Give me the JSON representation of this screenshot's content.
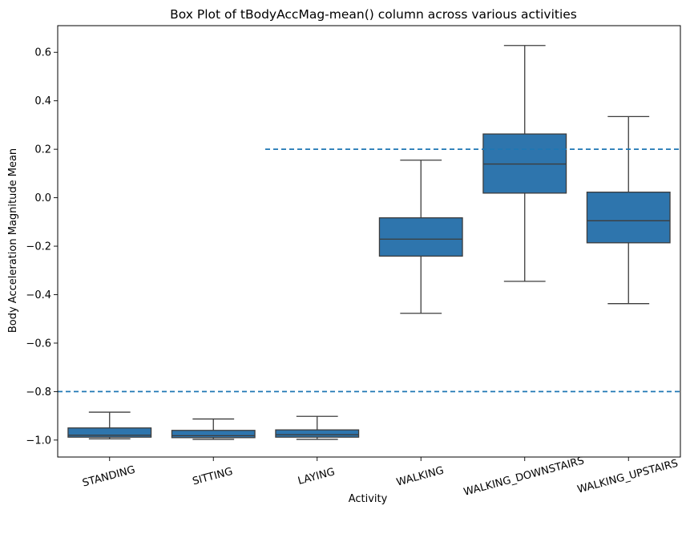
{
  "chart_data": {
    "type": "box",
    "title": "Box Plot of tBodyAccMag-mean() column across various activities",
    "xlabel": "Activity",
    "ylabel": "Body Acceleration Magnitude Mean",
    "ylim": [
      -1.07,
      0.71
    ],
    "yticks": [
      -1.0,
      -0.8,
      -0.6,
      -0.4,
      -0.2,
      0.0,
      0.2,
      0.4,
      0.6
    ],
    "ytick_labels": [
      "−1.0",
      "−0.8",
      "−0.6",
      "−0.4",
      "−0.2",
      "0.0",
      "0.2",
      "0.4",
      "0.6"
    ],
    "categories": [
      "STANDING",
      "SITTING",
      "LAYING",
      "WALKING",
      "WALKING_DOWNSTAIRS",
      "WALKING_UPSTAIRS"
    ],
    "box_color": "#2e75ad",
    "line_color": "#3d3d3d",
    "reference_line_color": "#1f77b4",
    "boxes": [
      {
        "category": "STANDING",
        "whisker_low": -0.995,
        "q1": -0.988,
        "median": -0.98,
        "q3": -0.95,
        "whisker_high": -0.885
      },
      {
        "category": "SITTING",
        "whisker_low": -0.997,
        "q1": -0.99,
        "median": -0.982,
        "q3": -0.96,
        "whisker_high": -0.913
      },
      {
        "category": "LAYING",
        "whisker_low": -0.997,
        "q1": -0.988,
        "median": -0.978,
        "q3": -0.958,
        "whisker_high": -0.902
      },
      {
        "category": "WALKING",
        "whisker_low": -0.477,
        "q1": -0.241,
        "median": -0.171,
        "q3": -0.083,
        "whisker_high": 0.155
      },
      {
        "category": "WALKING_DOWNSTAIRS",
        "whisker_low": -0.345,
        "q1": 0.019,
        "median": 0.139,
        "q3": 0.263,
        "whisker_high": 0.628
      },
      {
        "category": "WALKING_UPSTAIRS",
        "whisker_low": -0.437,
        "q1": -0.186,
        "median": -0.095,
        "q3": 0.023,
        "whisker_high": 0.335
      }
    ],
    "reference_lines": [
      {
        "y": 0.2,
        "x_from_category": 1.5,
        "x_to_category": 5.5
      },
      {
        "y": -0.8,
        "x_from_category": -0.5,
        "x_to_category": 5.5
      }
    ],
    "grid": false
  }
}
